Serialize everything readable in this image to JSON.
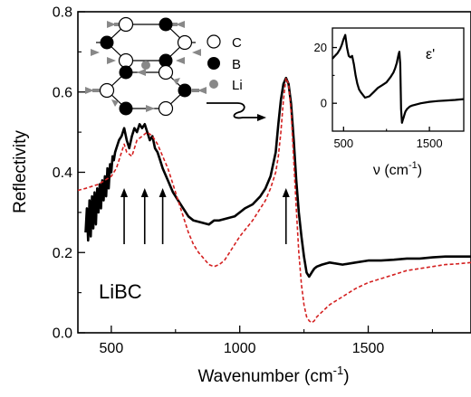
{
  "chart_data": [
    {
      "type": "line",
      "xlabel": "Wavenumber (cm",
      "xlabel_sup": "-1",
      "xlabel_tail": ")",
      "ylabel": "Reflectivity",
      "xlim": [
        370,
        1900
      ],
      "ylim": [
        0.0,
        0.8
      ],
      "xticks": [
        500,
        1000,
        1500
      ],
      "yticks": [
        0.0,
        0.2,
        0.4,
        0.6,
        0.8
      ],
      "tick_labels_x": [
        "500",
        "1000",
        "1500"
      ],
      "tick_labels_y": [
        "0.0",
        "0.2",
        "0.4",
        "0.6",
        "0.8"
      ],
      "grid": false,
      "annotations": {
        "sample_label": "LiBC",
        "phonon_arrows_x": [
          550,
          630,
          700,
          1180
        ],
        "legend": [
          {
            "symbol": "open-circle",
            "label": "C"
          },
          {
            "symbol": "filled-circle",
            "label": "B"
          },
          {
            "symbol": "gray-circle",
            "label": "Li"
          }
        ]
      },
      "series": [
        {
          "style": "solid-black",
          "x": [
            400,
            405,
            410,
            415,
            420,
            425,
            430,
            435,
            440,
            445,
            450,
            455,
            460,
            465,
            470,
            475,
            480,
            485,
            490,
            495,
            500,
            505,
            510,
            515,
            520,
            530,
            540,
            550,
            560,
            570,
            580,
            590,
            600,
            610,
            620,
            630,
            640,
            650,
            660,
            670,
            680,
            690,
            700,
            720,
            740,
            760,
            780,
            800,
            820,
            850,
            880,
            900,
            920,
            950,
            980,
            1000,
            1020,
            1050,
            1080,
            1100,
            1120,
            1140,
            1150,
            1160,
            1170,
            1180,
            1190,
            1200,
            1210,
            1220,
            1230,
            1240,
            1250,
            1260,
            1270,
            1280,
            1290,
            1300,
            1320,
            1350,
            1400,
            1450,
            1500,
            1550,
            1600,
            1650,
            1700,
            1750,
            1800,
            1850,
            1900
          ],
          "y": [
            0.25,
            0.31,
            0.23,
            0.33,
            0.24,
            0.34,
            0.26,
            0.35,
            0.27,
            0.36,
            0.3,
            0.37,
            0.31,
            0.38,
            0.33,
            0.39,
            0.34,
            0.41,
            0.36,
            0.42,
            0.4,
            0.44,
            0.43,
            0.45,
            0.46,
            0.48,
            0.49,
            0.51,
            0.48,
            0.46,
            0.49,
            0.51,
            0.5,
            0.52,
            0.51,
            0.52,
            0.5,
            0.48,
            0.49,
            0.46,
            0.45,
            0.43,
            0.41,
            0.38,
            0.35,
            0.33,
            0.31,
            0.29,
            0.28,
            0.275,
            0.27,
            0.28,
            0.28,
            0.285,
            0.29,
            0.3,
            0.31,
            0.32,
            0.34,
            0.36,
            0.39,
            0.45,
            0.52,
            0.58,
            0.62,
            0.635,
            0.62,
            0.57,
            0.48,
            0.38,
            0.3,
            0.24,
            0.19,
            0.15,
            0.14,
            0.15,
            0.16,
            0.165,
            0.17,
            0.175,
            0.17,
            0.175,
            0.18,
            0.18,
            0.182,
            0.185,
            0.185,
            0.188,
            0.19,
            0.19,
            0.19
          ]
        },
        {
          "style": "dashed-red",
          "x": [
            370,
            400,
            450,
            500,
            520,
            540,
            550,
            560,
            580,
            600,
            620,
            640,
            660,
            680,
            700,
            720,
            740,
            760,
            780,
            800,
            820,
            840,
            860,
            880,
            900,
            920,
            940,
            960,
            980,
            1000,
            1050,
            1100,
            1120,
            1140,
            1150,
            1160,
            1170,
            1180,
            1190,
            1200,
            1210,
            1220,
            1230,
            1240,
            1250,
            1260,
            1270,
            1280,
            1290,
            1300,
            1350,
            1400,
            1450,
            1500,
            1550,
            1600,
            1650,
            1700,
            1750,
            1800,
            1850,
            1900
          ],
          "y": [
            0.355,
            0.36,
            0.37,
            0.39,
            0.41,
            0.45,
            0.47,
            0.45,
            0.44,
            0.48,
            0.49,
            0.5,
            0.49,
            0.47,
            0.44,
            0.41,
            0.37,
            0.33,
            0.29,
            0.25,
            0.22,
            0.2,
            0.185,
            0.17,
            0.165,
            0.17,
            0.18,
            0.2,
            0.22,
            0.24,
            0.28,
            0.33,
            0.36,
            0.4,
            0.44,
            0.5,
            0.58,
            0.635,
            0.62,
            0.55,
            0.43,
            0.31,
            0.2,
            0.12,
            0.07,
            0.04,
            0.03,
            0.025,
            0.03,
            0.04,
            0.07,
            0.09,
            0.11,
            0.125,
            0.135,
            0.145,
            0.155,
            0.16,
            0.165,
            0.17,
            0.172,
            0.175
          ]
        }
      ]
    },
    {
      "type": "line",
      "title": "ε'",
      "xlabel": "ν (cm",
      "xlabel_sup": "-1",
      "xlabel_tail": ")",
      "ylabel": "",
      "xlim": [
        370,
        1900
      ],
      "ylim": [
        -10,
        27
      ],
      "xticks": [
        500,
        1500
      ],
      "yticks": [
        0,
        20
      ],
      "tick_labels_x": [
        "500",
        "1500"
      ],
      "tick_labels_y": [
        "0",
        "20"
      ],
      "grid": false,
      "series": [
        {
          "style": "solid-black",
          "x": [
            370,
            400,
            430,
            460,
            480,
            500,
            520,
            540,
            560,
            580,
            600,
            620,
            640,
            660,
            680,
            700,
            750,
            800,
            850,
            900,
            950,
            1000,
            1050,
            1080,
            1100,
            1120,
            1130,
            1140,
            1150,
            1160,
            1170,
            1180,
            1190,
            1200,
            1210,
            1220,
            1240,
            1270,
            1300,
            1350,
            1400,
            1500,
            1600,
            1700,
            1800,
            1900
          ],
          "y": [
            16,
            17,
            18,
            19.5,
            21,
            23,
            24.5,
            20,
            17,
            16.5,
            17,
            14,
            10,
            7,
            5,
            4,
            2,
            2.5,
            4,
            5.5,
            6.5,
            7.5,
            9.5,
            11,
            12.5,
            14.5,
            16,
            17.5,
            18.5,
            14,
            -2,
            -7,
            -6,
            -5,
            -4,
            -3,
            -2,
            -1.2,
            -0.8,
            -0.4,
            0,
            0.5,
            0.8,
            1,
            1.2,
            1.5
          ]
        }
      ]
    }
  ]
}
